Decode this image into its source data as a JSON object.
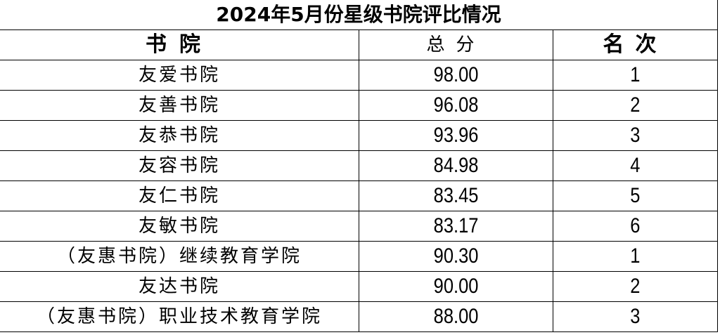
{
  "title": "2024年5月份星级书院评比情况",
  "headers": {
    "name": "书院",
    "score": "总分",
    "rank": "名次"
  },
  "rows": [
    {
      "name": "友爱书院",
      "score": "98.00",
      "rank": "1"
    },
    {
      "name": "友善书院",
      "score": "96.08",
      "rank": "2"
    },
    {
      "name": "友恭书院",
      "score": "93.96",
      "rank": "3"
    },
    {
      "name": "友容书院",
      "score": "84.98",
      "rank": "4"
    },
    {
      "name": "友仁书院",
      "score": "83.45",
      "rank": "5"
    },
    {
      "name": "友敏书院",
      "score": "83.17",
      "rank": "6"
    },
    {
      "name": "（友惠书院）继续教育学院",
      "score": "90.30",
      "rank": "1"
    },
    {
      "name": "友达书院",
      "score": "90.00",
      "rank": "2"
    },
    {
      "name": "（友惠书院）职业技术教育学院",
      "score": "88.00",
      "rank": "3"
    }
  ]
}
